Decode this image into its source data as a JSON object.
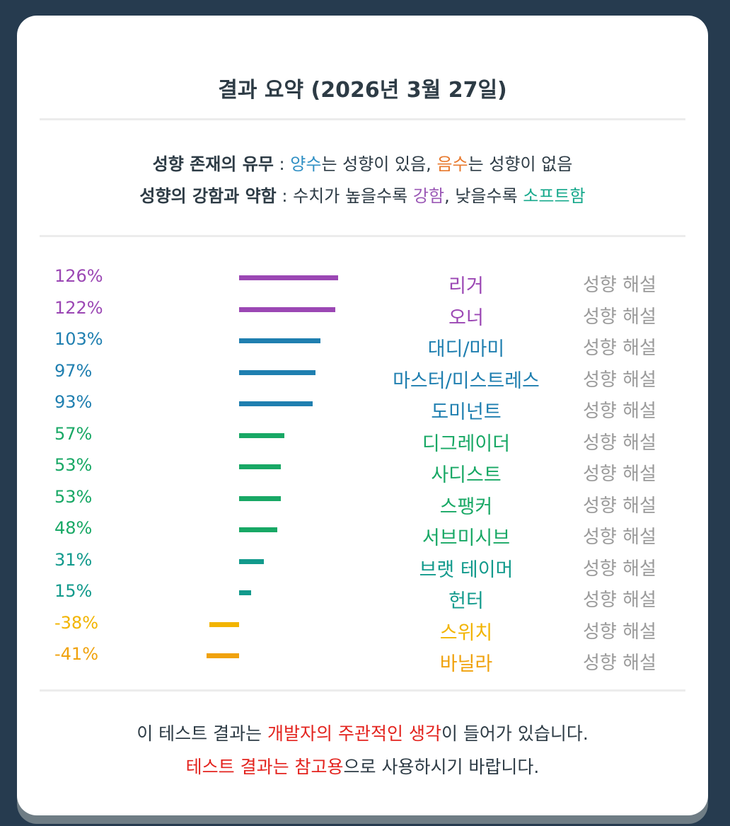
{
  "title": "결과 요약 (2026년 3월 27일)",
  "legend": {
    "line1": {
      "label": "성향 존재의 유무",
      "sep": " : ",
      "pos_word": "양수",
      "pos_text": "는 성향이 있음, ",
      "neg_word": "음수",
      "neg_text": "는 성향이 없음"
    },
    "line2": {
      "label": "성향의 강함과 약함",
      "sep": " : ",
      "text1": "수치가 높을수록 ",
      "strong_word": "강함",
      "text2": ", 낮을수록 ",
      "soft_word": "소프트함"
    }
  },
  "chart_data": {
    "type": "bar",
    "orientation": "horizontal",
    "categories": [
      "리거",
      "오너",
      "대디/마미",
      "마스터/미스트레스",
      "도미넌트",
      "디그레이더",
      "사디스트",
      "스팽커",
      "서브미시브",
      "브랫 테이머",
      "헌터",
      "스위치",
      "바닐라"
    ],
    "values": [
      126,
      122,
      103,
      97,
      93,
      57,
      53,
      53,
      48,
      31,
      15,
      -38,
      -41
    ],
    "labels": [
      "126%",
      "122%",
      "103%",
      "97%",
      "93%",
      "57%",
      "53%",
      "53%",
      "48%",
      "31%",
      "15%",
      "-38%",
      "-41%"
    ],
    "colors": [
      "#9b47b4",
      "#9b47b4",
      "#1f7fb0",
      "#1f7fb0",
      "#1f7fb0",
      "#18a865",
      "#18a865",
      "#18a865",
      "#18a865",
      "#129a8c",
      "#129a8c",
      "#f2b400",
      "#f0a20d"
    ],
    "link_label": "성향 해설",
    "units": "%"
  },
  "footer": {
    "line1": {
      "text1": "이 테스트 결과는 ",
      "highlight": "개발자의 주관적인 생각",
      "text2": "이 들어가 있습니다."
    },
    "line2": {
      "highlight": "테스트 결과는 참고용",
      "text": "으로 사용하시기 바랍니다."
    }
  }
}
